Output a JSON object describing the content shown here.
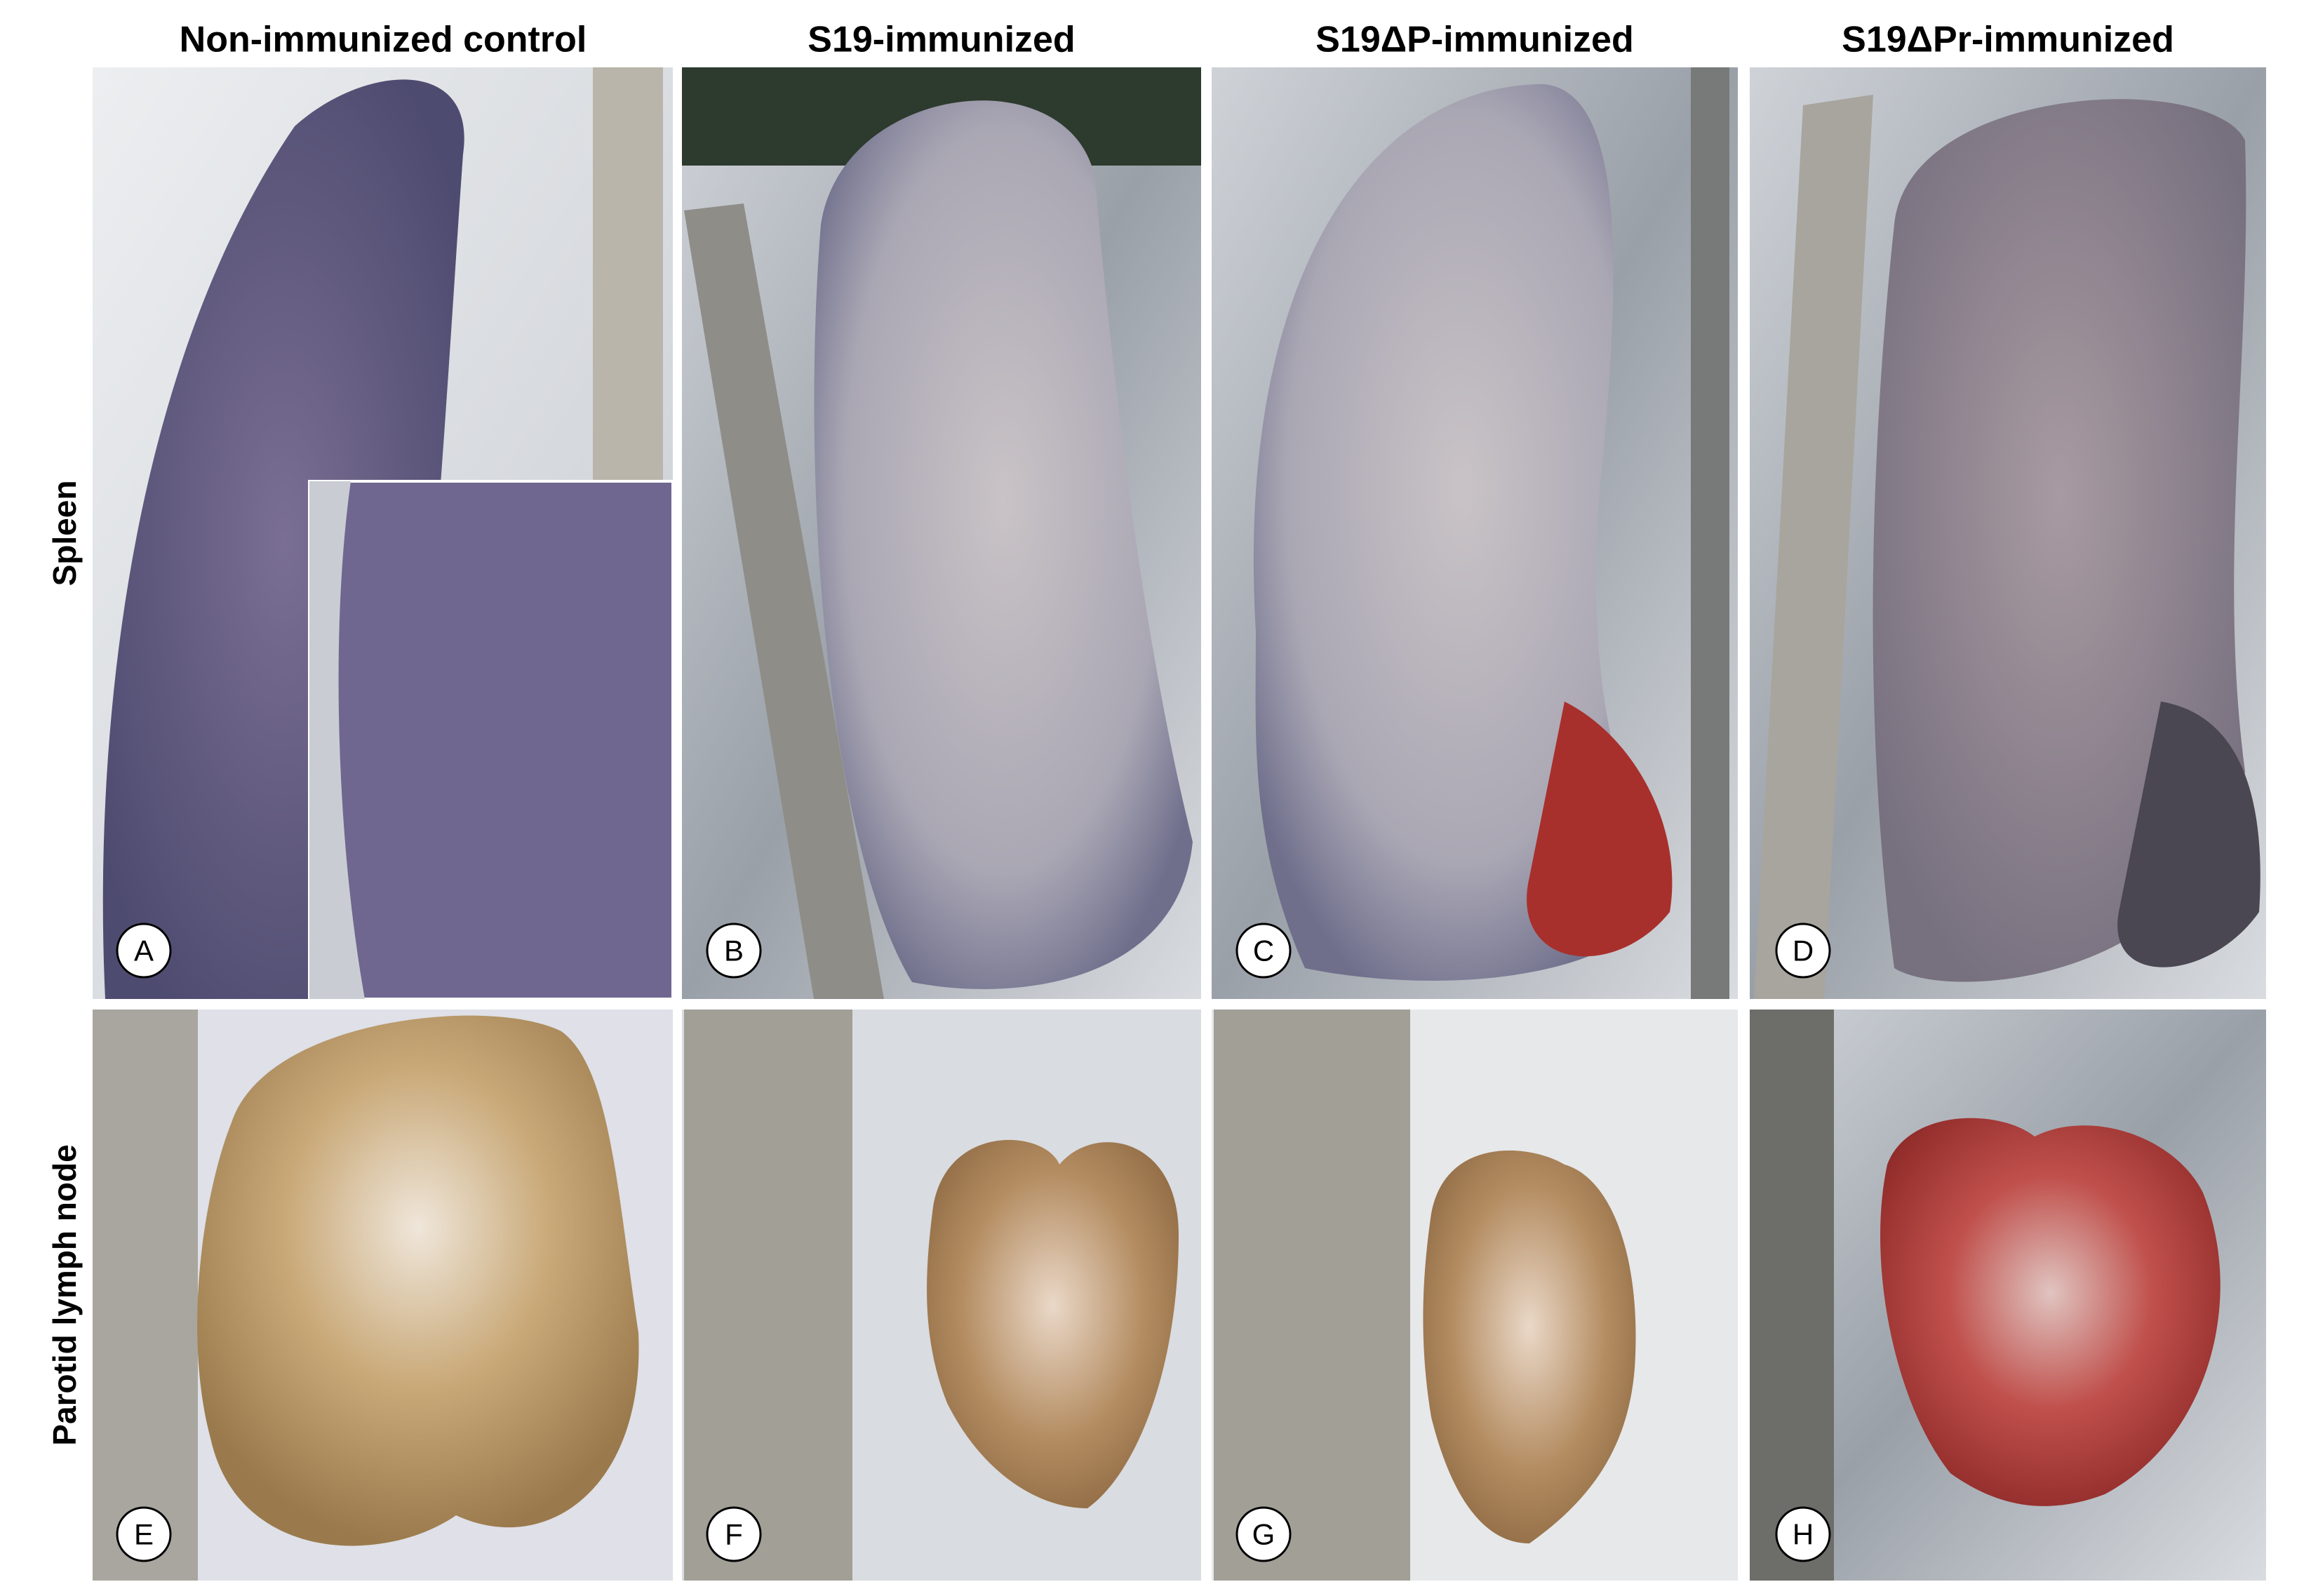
{
  "column_headers": [
    "Non-immunized control",
    "S19-immunized",
    "S19ΔP-immunized",
    "S19ΔPr-immunized"
  ],
  "row_labels": [
    "Spleen",
    "Parotid lymph node"
  ],
  "panels": [
    "A",
    "B",
    "C",
    "D",
    "E",
    "F",
    "G",
    "H"
  ]
}
